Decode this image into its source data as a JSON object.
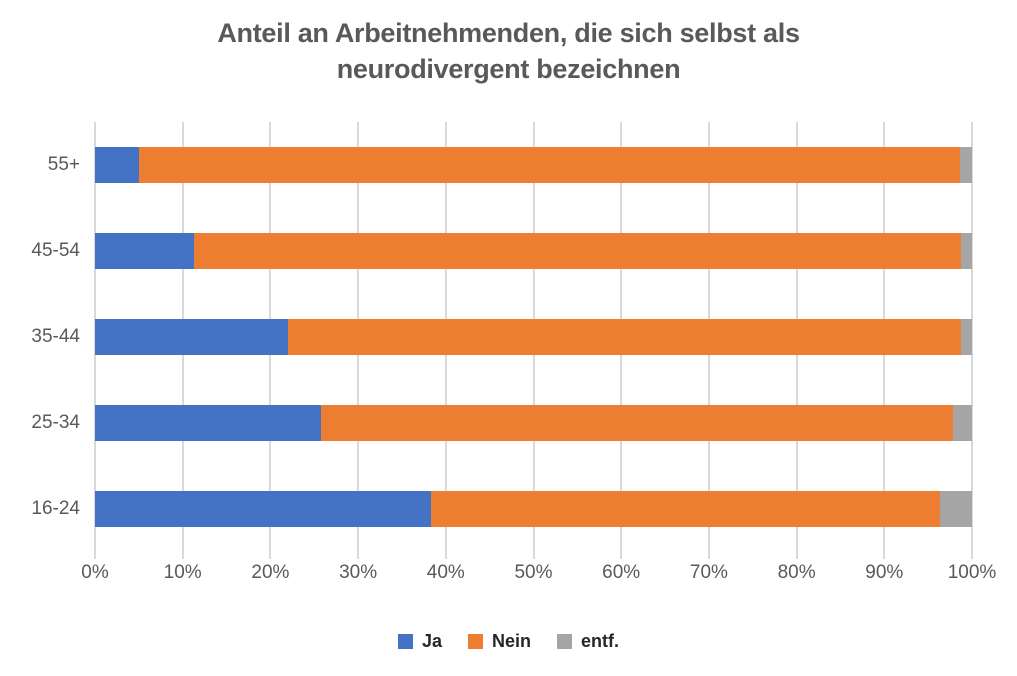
{
  "chart_data": {
    "type": "bar",
    "orientation": "horizontal",
    "stacked": true,
    "normalized_100pct": true,
    "title": "Anteil an Arbeitnehmenden, die sich selbst als neurodivergent bezeichnen",
    "title_lines": [
      "Anteil an Arbeitnehmenden, die sich selbst als",
      "neurodivergent bezeichnen"
    ],
    "categories_top_to_bottom": [
      "55+",
      "45-54",
      "35-44",
      "25-34",
      "16-24"
    ],
    "series": [
      {
        "name": "Ja",
        "color": "#4472C4",
        "values": [
          5.0,
          11.3,
          22.0,
          25.8,
          38.3
        ]
      },
      {
        "name": "Nein",
        "color": "#ED7D31",
        "values": [
          93.6,
          87.5,
          76.8,
          72.0,
          58.0
        ]
      },
      {
        "name": "entf.",
        "color": "#A5A5A5",
        "values": [
          1.4,
          1.2,
          1.2,
          2.2,
          3.7
        ]
      }
    ],
    "xlabel": "",
    "ylabel": "",
    "xlim": [
      0,
      100
    ],
    "x_tick_step": 10,
    "x_tick_labels": [
      "0%",
      "10%",
      "20%",
      "30%",
      "40%",
      "50%",
      "60%",
      "70%",
      "80%",
      "90%",
      "100%"
    ],
    "grid": true,
    "gridline_color": "#D9D9D9",
    "legend_position": "bottom",
    "text_color": "#595959",
    "title_color": "#595959",
    "legend_text_color": "#262626",
    "background_color": "#FFFFFF"
  }
}
